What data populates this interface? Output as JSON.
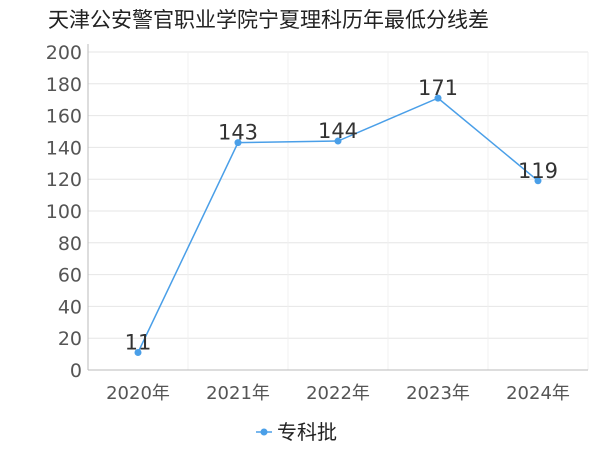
{
  "chart_data": {
    "type": "line",
    "title": "天津公安警官职业学院宁夏理科历年最低分线差",
    "categories": [
      "2020年",
      "2021年",
      "2022年",
      "2023年",
      "2024年"
    ],
    "series": [
      {
        "name": "专科批",
        "values": [
          11,
          143,
          144,
          171,
          119
        ]
      }
    ],
    "ylim": [
      0,
      200
    ],
    "yticks": [
      0,
      20,
      40,
      60,
      80,
      100,
      120,
      140,
      160,
      180,
      200
    ],
    "grid": true,
    "legend": "bottom-center",
    "colors": {
      "series": "#4a9fe8",
      "grid": "#e6e6e6",
      "axis": "#bbbbbb"
    }
  }
}
